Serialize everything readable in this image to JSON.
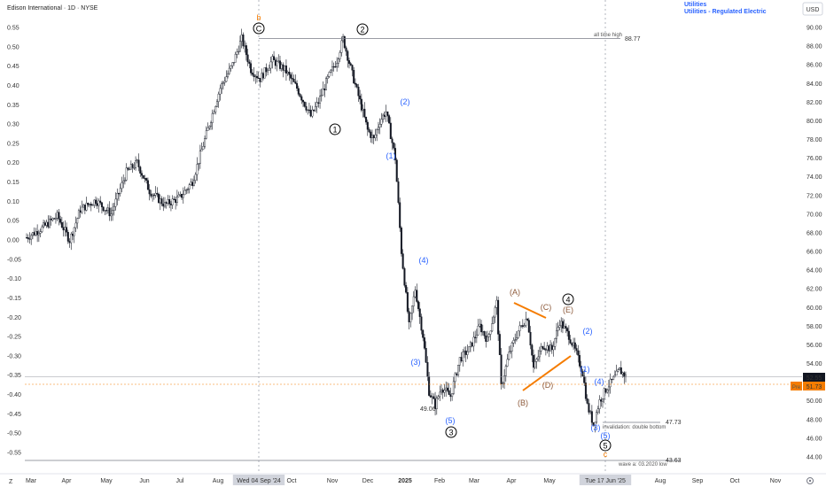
{
  "header": {
    "title": "Edison International · 1D · NYSE",
    "sector": "Utilities",
    "industry": "Utilities - Regulated Electric",
    "currency": "USD"
  },
  "footer": {
    "z_label": "Z"
  },
  "colors": {
    "up": "#131722",
    "down": "#131722",
    "blue": "#2962ff",
    "brown": "#8d5a3b",
    "orange": "#f57c00",
    "hline": "#787b86",
    "price_red": "#f23645"
  },
  "chart_data": {
    "type": "candlestick",
    "x_months": [
      "Mar",
      "Apr",
      "May",
      "Jun",
      "Jul",
      "Aug",
      "Wed 04 Sep '24",
      "Oct",
      "Nov",
      "Dec",
      "2025",
      "Feb",
      "Mar",
      "Apr",
      "May",
      "J",
      "Tue 17 Jun '25",
      "Aug",
      "Sep",
      "Oct",
      "Nov"
    ],
    "right_axis": {
      "min": 44.0,
      "max": 90.0,
      "step": 2.0,
      "ticks": [
        "90.00",
        "88.00",
        "86.00",
        "84.00",
        "82.00",
        "80.00",
        "78.00",
        "76.00",
        "74.00",
        "72.00",
        "70.00",
        "68.00",
        "66.00",
        "64.00",
        "62.00",
        "60.00",
        "58.00",
        "56.00",
        "54.00",
        "52.00",
        "50.00",
        "48.00",
        "46.00",
        "44.00"
      ]
    },
    "left_axis": {
      "min": -0.55,
      "max": 0.55,
      "step": 0.05,
      "ticks": [
        "0.55",
        "0.50",
        "0.45",
        "0.40",
        "0.35",
        "0.30",
        "0.25",
        "0.20",
        "0.15",
        "0.10",
        "0.05",
        "0.00",
        "-0.05",
        "-0.10",
        "-0.15",
        "-0.20",
        "-0.25",
        "-0.30",
        "-0.35",
        "-0.40",
        "-0.45",
        "-0.50",
        "-0.55"
      ]
    },
    "price_path": [
      [
        0,
        67.5
      ],
      [
        10,
        68.5
      ],
      [
        20,
        69.8
      ],
      [
        28,
        67.2
      ],
      [
        35,
        70.5
      ],
      [
        45,
        71.5
      ],
      [
        55,
        70.0
      ],
      [
        65,
        74.5
      ],
      [
        72,
        75.5
      ],
      [
        80,
        72.5
      ],
      [
        90,
        71.0
      ],
      [
        100,
        71.8
      ],
      [
        108,
        73.5
      ],
      [
        116,
        78.0
      ],
      [
        126,
        83.5
      ],
      [
        134,
        86.0
      ],
      [
        140,
        88.8
      ],
      [
        146,
        85.5
      ],
      [
        152,
        84.5
      ],
      [
        160,
        86.5
      ],
      [
        168,
        85.5
      ],
      [
        176,
        83.5
      ],
      [
        185,
        80.5
      ],
      [
        190,
        82.0
      ],
      [
        196,
        84.5
      ],
      [
        202,
        86.5
      ],
      [
        206,
        88.8
      ],
      [
        212,
        85.0
      ],
      [
        218,
        81.5
      ],
      [
        222,
        79.0
      ],
      [
        226,
        78.0
      ],
      [
        230,
        80.0
      ],
      [
        234,
        81.0
      ],
      [
        240,
        76.0
      ],
      [
        244,
        66.0
      ],
      [
        249,
        58.0
      ],
      [
        253,
        62.0
      ],
      [
        258,
        57.0
      ],
      [
        262,
        51.0
      ],
      [
        266,
        49.5
      ],
      [
        270,
        51.5
      ],
      [
        276,
        50.5
      ],
      [
        282,
        54.5
      ],
      [
        288,
        55.5
      ],
      [
        295,
        58.0
      ],
      [
        300,
        56.5
      ],
      [
        306,
        60.5
      ],
      [
        309,
        51.5
      ],
      [
        314,
        55.0
      ],
      [
        320,
        57.5
      ],
      [
        326,
        59.0
      ],
      [
        330,
        53.5
      ],
      [
        336,
        56.0
      ],
      [
        342,
        55.5
      ],
      [
        347,
        58.5
      ],
      [
        353,
        57.0
      ],
      [
        358,
        55.0
      ],
      [
        362,
        53.0
      ],
      [
        365,
        49.5
      ],
      [
        369,
        47.5
      ],
      [
        373,
        50.0
      ],
      [
        378,
        51.5
      ],
      [
        383,
        52.5
      ],
      [
        386,
        53.3
      ],
      [
        390,
        52.6
      ]
    ],
    "annotations": [
      {
        "text": "all time high",
        "value": "88.77"
      },
      {
        "text": "invalidation: double bottom",
        "value": "47.73"
      },
      {
        "text": "wave a: 03.2020 low",
        "value": "43.63"
      },
      {
        "text": "49.06",
        "value": "49.06"
      }
    ],
    "wave_labels_black_circled": [
      "C",
      "2",
      "1",
      "3",
      "4",
      "5"
    ],
    "wave_labels_blue": [
      "(2)",
      "(1)",
      "(4)",
      "(3)",
      "(5)",
      "(2)",
      "(1)",
      "(4)",
      "(3)",
      "(5)"
    ],
    "wave_labels_brown": [
      "(A)",
      "(C)",
      "(E)",
      "(B)",
      "(D)"
    ],
    "wave_labels_orange": [
      "b",
      "c"
    ],
    "price_labels": {
      "last": "52.55",
      "pre_label": "Pre",
      "pre_value": "51.73"
    }
  }
}
